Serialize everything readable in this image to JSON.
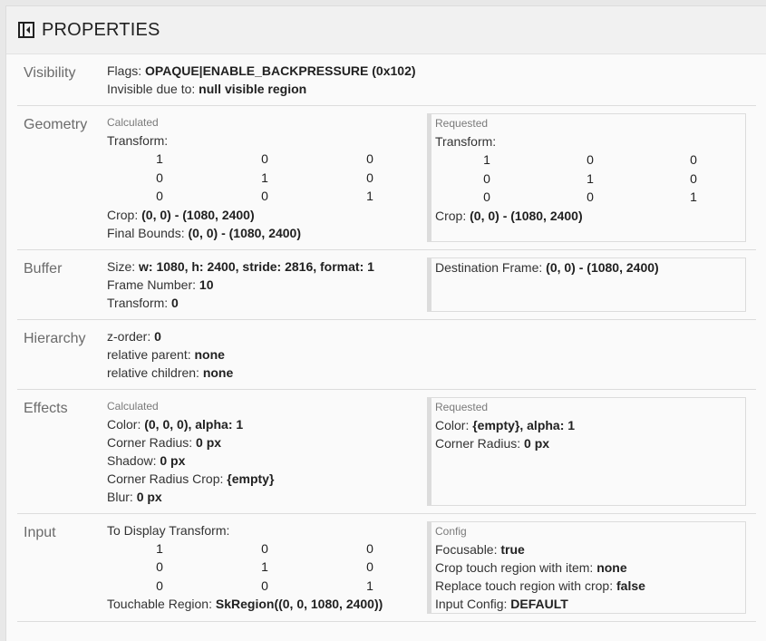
{
  "header": {
    "title": "PROPERTIES",
    "icon": "collapse-panel-icon"
  },
  "sections": [
    {
      "label": "Visibility",
      "left": {
        "lines": [
          {
            "k": "Flags: ",
            "v": "OPAQUE|ENABLE_BACKPRESSURE (0x102)"
          },
          {
            "k": "Invisible due to: ",
            "v": "null visible region"
          }
        ]
      }
    },
    {
      "label": "Geometry",
      "left": {
        "title": "Calculated",
        "lines": [
          {
            "k": "Transform:"
          },
          {
            "matrix": [
              [
                "1",
                "0",
                "0"
              ],
              [
                "0",
                "1",
                "0"
              ],
              [
                "0",
                "0",
                "1"
              ]
            ]
          },
          {
            "k": "Crop: ",
            "v": "(0, 0) - (1080, 2400)"
          },
          {
            "k": "Final Bounds: ",
            "v": "(0, 0) - (1080, 2400)"
          }
        ]
      },
      "right": {
        "title": "Requested",
        "lines": [
          {
            "k": "Transform:"
          },
          {
            "matrix": [
              [
                "1",
                "0",
                "0"
              ],
              [
                "0",
                "1",
                "0"
              ],
              [
                "0",
                "0",
                "1"
              ]
            ]
          },
          {
            "k": "Crop: ",
            "v": "(0, 0) - (1080, 2400)"
          }
        ]
      }
    },
    {
      "label": "Buffer",
      "left": {
        "lines": [
          {
            "k": "Size: ",
            "v": "w: 1080, h: 2400, stride: 2816, format: 1"
          },
          {
            "k": "Frame Number: ",
            "v": "10"
          },
          {
            "k": "Transform: ",
            "v": "0"
          }
        ]
      },
      "right": {
        "lines": [
          {
            "k": "Destination Frame: ",
            "v": "(0, 0) - (1080, 2400)"
          }
        ]
      }
    },
    {
      "label": "Hierarchy",
      "left": {
        "lines": [
          {
            "k": "z-order: ",
            "v": "0"
          },
          {
            "k": "relative parent: ",
            "v": "none"
          },
          {
            "k": "relative children: ",
            "v": "none"
          }
        ]
      }
    },
    {
      "label": "Effects",
      "left": {
        "title": "Calculated",
        "lines": [
          {
            "k": "Color: ",
            "v": "(0, 0, 0), alpha: 1"
          },
          {
            "k": "Corner Radius: ",
            "v": "0 px"
          },
          {
            "k": "Shadow: ",
            "v": "0 px"
          },
          {
            "k": "Corner Radius Crop: ",
            "v": "{empty}"
          },
          {
            "k": "Blur: ",
            "v": "0 px"
          }
        ]
      },
      "right": {
        "title": "Requested",
        "lines": [
          {
            "k": "Color: ",
            "v": "{empty}, alpha: 1"
          },
          {
            "k": "Corner Radius: ",
            "v": "0 px"
          }
        ]
      }
    },
    {
      "label": "Input",
      "left": {
        "lines": [
          {
            "k": "To Display Transform:"
          },
          {
            "matrix": [
              [
                "1",
                "0",
                "0"
              ],
              [
                "0",
                "1",
                "0"
              ],
              [
                "0",
                "0",
                "1"
              ]
            ]
          },
          {
            "k": "Touchable Region: ",
            "v": "SkRegion((0, 0, 1080, 2400))"
          }
        ]
      },
      "right": {
        "title": "Config",
        "lines": [
          {
            "k": "Focusable: ",
            "v": "true"
          },
          {
            "k": "Crop touch region with item: ",
            "v": "none"
          },
          {
            "k": "Replace touch region with crop: ",
            "v": "false"
          },
          {
            "k": "Input Config: ",
            "v": "DEFAULT"
          }
        ]
      }
    }
  ]
}
